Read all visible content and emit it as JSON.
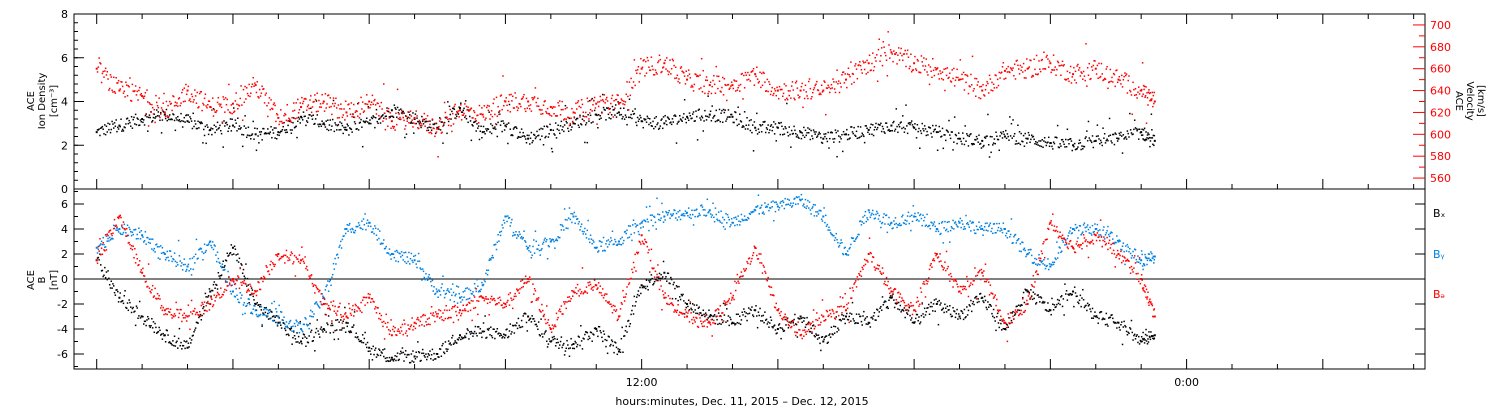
{
  "figure": {
    "xlabel": "hours:minutes, Dec. 11, 2015 – Dec. 12, 2015"
  },
  "chart_data": [
    {
      "type": "scatter",
      "panel": "density-velocity",
      "x_unit": "hours since 00:00 Dec. 11, 2015",
      "xlim": [
        -0.5,
        29.25
      ],
      "x_ticks": [
        {
          "x": 0,
          "label": ""
        },
        {
          "x": 12,
          "label": "12:00"
        },
        {
          "x": 24,
          "label": "0:00"
        }
      ],
      "ylabel_left": [
        "ACE",
        "Ion Density",
        "[cm⁻³]"
      ],
      "ylim_left": [
        0,
        8
      ],
      "yticks_left": [
        0,
        2,
        4,
        6,
        8
      ],
      "ylabel_right": [
        "ACE",
        "Velocity",
        "[km/s]"
      ],
      "ylim_right": [
        550,
        710
      ],
      "yticks_right": [
        560,
        580,
        600,
        620,
        640,
        660,
        680,
        700
      ],
      "series": [
        {
          "axis": "left",
          "color": "#000000",
          "points": [
            [
              0,
              2.6
            ],
            [
              0.5,
              2.9
            ],
            [
              1,
              3.2
            ],
            [
              1.5,
              3.4
            ],
            [
              2,
              3.1
            ],
            [
              2.5,
              2.7
            ],
            [
              3,
              2.9
            ],
            [
              3.5,
              2.5
            ],
            [
              4,
              2.6
            ],
            [
              4.5,
              3.3
            ],
            [
              5,
              3.0
            ],
            [
              5.5,
              2.7
            ],
            [
              6,
              3.0
            ],
            [
              6.5,
              3.6
            ],
            [
              7,
              3.2
            ],
            [
              7.5,
              2.8
            ],
            [
              8,
              3.7
            ],
            [
              8.5,
              2.6
            ],
            [
              9,
              2.9
            ],
            [
              9.5,
              2.3
            ],
            [
              10,
              2.7
            ],
            [
              10.5,
              3.0
            ],
            [
              11,
              3.4
            ],
            [
              11.5,
              3.5
            ],
            [
              12,
              3.1
            ],
            [
              12.5,
              3.0
            ],
            [
              13,
              3.3
            ],
            [
              13.5,
              3.4
            ],
            [
              14,
              3.3
            ],
            [
              14.5,
              2.8
            ],
            [
              15,
              2.8
            ],
            [
              15.5,
              2.6
            ],
            [
              16,
              2.3
            ],
            [
              16.5,
              2.5
            ],
            [
              17,
              2.7
            ],
            [
              17.5,
              2.9
            ],
            [
              18,
              2.8
            ],
            [
              18.5,
              2.6
            ],
            [
              19,
              2.3
            ],
            [
              19.5,
              2.2
            ],
            [
              20,
              2.4
            ],
            [
              20.5,
              2.3
            ],
            [
              21,
              2.1
            ],
            [
              21.5,
              2.0
            ],
            [
              22,
              2.2
            ],
            [
              22.5,
              2.3
            ],
            [
              23,
              2.6
            ],
            [
              23.3,
              2.2
            ]
          ]
        },
        {
          "axis": "right",
          "color": "#ff0000",
          "points": [
            [
              0,
              660
            ],
            [
              0.5,
              640
            ],
            [
              1,
              635
            ],
            [
              1.5,
              620
            ],
            [
              2,
              640
            ],
            [
              2.5,
              625
            ],
            [
              3,
              628
            ],
            [
              3.5,
              645
            ],
            [
              4,
              615
            ],
            [
              4.5,
              625
            ],
            [
              5,
              630
            ],
            [
              5.5,
              620
            ],
            [
              6,
              630
            ],
            [
              6.5,
              612
            ],
            [
              7,
              615
            ],
            [
              7.5,
              605
            ],
            [
              8,
              622
            ],
            [
              8.5,
              618
            ],
            [
              9,
              630
            ],
            [
              9.5,
              630
            ],
            [
              10,
              625
            ],
            [
              10.5,
              620
            ],
            [
              11,
              628
            ],
            [
              11.5,
              628
            ],
            [
              12,
              660
            ],
            [
              12.5,
              665
            ],
            [
              13,
              650
            ],
            [
              13.5,
              645
            ],
            [
              14,
              645
            ],
            [
              14.5,
              655
            ],
            [
              15,
              640
            ],
            [
              15.5,
              640
            ],
            [
              16,
              640
            ],
            [
              16.5,
              650
            ],
            [
              17,
              665
            ],
            [
              17.5,
              675
            ],
            [
              18,
              665
            ],
            [
              18.5,
              660
            ],
            [
              19,
              650
            ],
            [
              19.5,
              640
            ],
            [
              20,
              658
            ],
            [
              20.5,
              660
            ],
            [
              21,
              665
            ],
            [
              21.5,
              655
            ],
            [
              22,
              660
            ],
            [
              22.5,
              650
            ],
            [
              23,
              640
            ],
            [
              23.3,
              630
            ]
          ]
        }
      ]
    },
    {
      "type": "scatter",
      "panel": "magnetic-field",
      "x_unit": "hours since 00:00 Dec. 11, 2015",
      "xlim": [
        -0.5,
        29.25
      ],
      "ylabel": [
        "ACE",
        "B",
        "[nT]"
      ],
      "ylim": [
        -7.2,
        7.2
      ],
      "yticks": [
        -6,
        -4,
        -2,
        0,
        2,
        4,
        6
      ],
      "zero_line": true,
      "series": [
        {
          "name": "Bₓ",
          "color": "#000000",
          "points": [
            [
              0,
              1.5
            ],
            [
              0.5,
              -1.5
            ],
            [
              1,
              -3.0
            ],
            [
              1.5,
              -4.5
            ],
            [
              2,
              -5.5
            ],
            [
              2.5,
              -1.0
            ],
            [
              3,
              2.5
            ],
            [
              3.5,
              -2.0
            ],
            [
              4,
              -3.5
            ],
            [
              4.5,
              -5.0
            ],
            [
              5,
              -4.0
            ],
            [
              5.5,
              -3.5
            ],
            [
              6,
              -5.5
            ],
            [
              6.5,
              -6.3
            ],
            [
              7,
              -6.2
            ],
            [
              7.5,
              -6.0
            ],
            [
              8,
              -4.5
            ],
            [
              8.5,
              -4.2
            ],
            [
              9,
              -4.5
            ],
            [
              9.5,
              -3.0
            ],
            [
              10,
              -5.0
            ],
            [
              10.5,
              -5.2
            ],
            [
              11,
              -4.0
            ],
            [
              11.5,
              -5.8
            ],
            [
              12,
              -0.5
            ],
            [
              12.5,
              0.5
            ],
            [
              13,
              -2.0
            ],
            [
              13.5,
              -3.0
            ],
            [
              14,
              -3.5
            ],
            [
              14.5,
              -2.5
            ],
            [
              15,
              -4.0
            ],
            [
              15.5,
              -3.0
            ],
            [
              16,
              -5.0
            ],
            [
              16.5,
              -3.0
            ],
            [
              17,
              -3.5
            ],
            [
              17.5,
              -1.5
            ],
            [
              18,
              -3.5
            ],
            [
              18.5,
              -2.0
            ],
            [
              19,
              -3.0
            ],
            [
              19.5,
              -1.5
            ],
            [
              20,
              -4.0
            ],
            [
              20.5,
              -1.0
            ],
            [
              21,
              -2.5
            ],
            [
              21.5,
              -1.0
            ],
            [
              22,
              -3.0
            ],
            [
              22.5,
              -3.5
            ],
            [
              23,
              -5.0
            ],
            [
              23.3,
              -4.5
            ]
          ]
        },
        {
          "name": "Bᵧ",
          "color": "#0080e0",
          "points": [
            [
              0,
              2.5
            ],
            [
              0.5,
              4.0
            ],
            [
              1,
              3.5
            ],
            [
              1.5,
              2.0
            ],
            [
              2,
              1.0
            ],
            [
              2.5,
              3.0
            ],
            [
              3,
              -1.0
            ],
            [
              3.5,
              -2.5
            ],
            [
              4,
              -3.0
            ],
            [
              4.5,
              -4.0
            ],
            [
              5,
              -1.5
            ],
            [
              5.5,
              4.0
            ],
            [
              6,
              4.5
            ],
            [
              6.5,
              2.0
            ],
            [
              7,
              1.5
            ],
            [
              7.5,
              -1.0
            ],
            [
              8,
              -1.5
            ],
            [
              8.5,
              -0.5
            ],
            [
              9,
              5.0
            ],
            [
              9.5,
              2.5
            ],
            [
              10,
              3.0
            ],
            [
              10.5,
              5.0
            ],
            [
              11,
              2.5
            ],
            [
              11.5,
              3.0
            ],
            [
              12,
              4.5
            ],
            [
              12.5,
              5.0
            ],
            [
              13,
              5.3
            ],
            [
              13.5,
              5.5
            ],
            [
              14,
              4.5
            ],
            [
              14.5,
              5.5
            ],
            [
              15,
              5.8
            ],
            [
              15.5,
              6.3
            ],
            [
              16,
              5.0
            ],
            [
              16.5,
              2.0
            ],
            [
              17,
              5.5
            ],
            [
              17.5,
              4.5
            ],
            [
              18,
              5.0
            ],
            [
              18.5,
              4.0
            ],
            [
              19,
              4.5
            ],
            [
              19.5,
              4.0
            ],
            [
              20,
              4.0
            ],
            [
              20.5,
              2.0
            ],
            [
              21,
              1.0
            ],
            [
              21.5,
              4.0
            ],
            [
              22,
              4.0
            ],
            [
              22.5,
              3.0
            ],
            [
              23,
              1.5
            ],
            [
              23.3,
              1.8
            ]
          ]
        },
        {
          "name": "Bₔ",
          "color": "#ff0000",
          "points": [
            [
              0,
              1.5
            ],
            [
              0.5,
              5.0
            ],
            [
              1,
              0.5
            ],
            [
              1.5,
              -2.5
            ],
            [
              2,
              -3.0
            ],
            [
              2.5,
              -2.0
            ],
            [
              3,
              0.0
            ],
            [
              3.5,
              -1.0
            ],
            [
              4,
              2.0
            ],
            [
              4.5,
              1.5
            ],
            [
              5,
              -2.0
            ],
            [
              5.5,
              -3.0
            ],
            [
              6,
              -1.5
            ],
            [
              6.5,
              -4.5
            ],
            [
              7,
              -3.5
            ],
            [
              7.5,
              -3.0
            ],
            [
              8,
              -2.5
            ],
            [
              8.5,
              -1.5
            ],
            [
              9,
              -2.0
            ],
            [
              9.5,
              0.0
            ],
            [
              10,
              -4.0
            ],
            [
              10.5,
              -1.0
            ],
            [
              11,
              -0.5
            ],
            [
              11.5,
              -3.0
            ],
            [
              12,
              3.5
            ],
            [
              12.5,
              -1.5
            ],
            [
              13,
              -3.0
            ],
            [
              13.5,
              -3.5
            ],
            [
              14,
              -1.5
            ],
            [
              14.5,
              2.5
            ],
            [
              15,
              -2.5
            ],
            [
              15.5,
              -4.5
            ],
            [
              16,
              -3.0
            ],
            [
              16.5,
              -2.5
            ],
            [
              17,
              2.0
            ],
            [
              17.5,
              -1.0
            ],
            [
              18,
              -2.5
            ],
            [
              18.5,
              2.0
            ],
            [
              19,
              -1.0
            ],
            [
              19.5,
              0.5
            ],
            [
              20,
              -3.5
            ],
            [
              20.5,
              -2.0
            ],
            [
              21,
              4.5
            ],
            [
              21.5,
              2.5
            ],
            [
              22,
              3.5
            ],
            [
              22.5,
              2.0
            ],
            [
              23,
              0.0
            ],
            [
              23.3,
              -3.0
            ]
          ]
        }
      ]
    }
  ]
}
